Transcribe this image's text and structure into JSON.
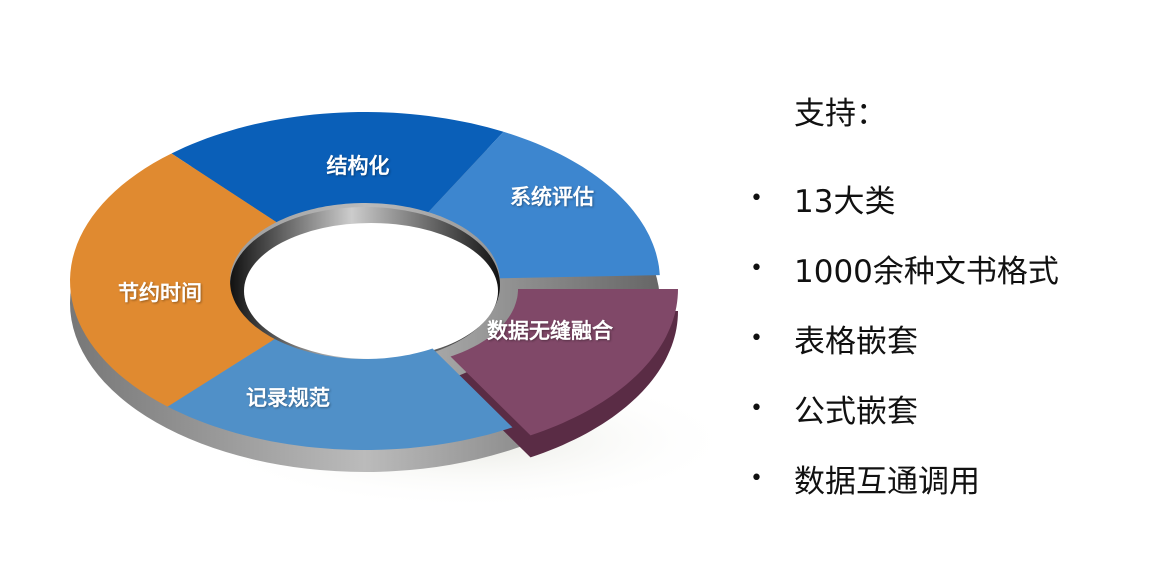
{
  "diagram": {
    "segments": [
      {
        "label": "结构化",
        "color": "#0a5fb8"
      },
      {
        "label": "系统评估",
        "color": "#3d86cf"
      },
      {
        "label": "数据无缝融合",
        "color": "#804868"
      },
      {
        "label": "记录规范",
        "color": "#5090c8"
      },
      {
        "label": "节约时间",
        "color": "#e08a30"
      }
    ]
  },
  "panel": {
    "title": "支持：",
    "items": [
      "13大类",
      "1000余种文书格式",
      "表格嵌套",
      "公式嵌套",
      "数据互通调用"
    ],
    "bullet": "•"
  }
}
